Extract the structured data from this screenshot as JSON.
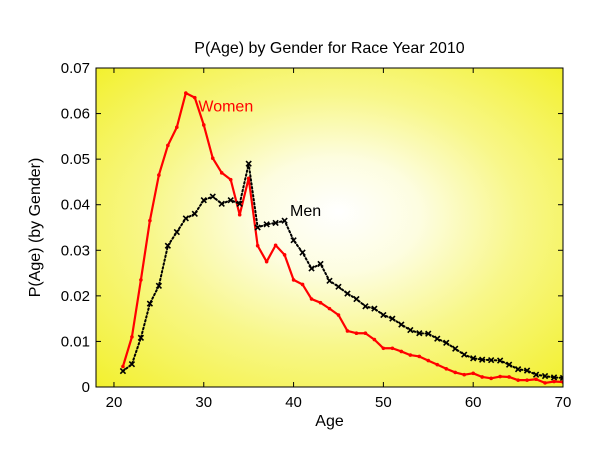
{
  "chart_data": {
    "type": "line",
    "title": "P(Age) by Gender for Race Year 2010",
    "xlabel": "Age",
    "ylabel": "P(Age) (by Gender)",
    "xlim": [
      18,
      70
    ],
    "ylim": [
      0,
      0.07
    ],
    "xticks": [
      20,
      30,
      40,
      50,
      60,
      70
    ],
    "yticks": [
      0,
      0.01,
      0.02,
      0.03,
      0.04,
      0.05,
      0.06,
      0.07
    ],
    "ytick_labels": [
      "0",
      "0.01",
      "0.02",
      "0.03",
      "0.04",
      "0.05",
      "0.06",
      "0.07"
    ],
    "grid": false,
    "background": {
      "center": "#ffffff",
      "edge": "#f2f02a"
    },
    "series": [
      {
        "name": "Women",
        "color": "#ff0000",
        "style": "solid",
        "marker": "dot",
        "x": [
          21,
          22,
          23,
          24,
          25,
          26,
          27,
          28,
          29,
          30,
          31,
          32,
          33,
          34,
          35,
          36,
          37,
          38,
          39,
          40,
          41,
          42,
          43,
          44,
          45,
          46,
          47,
          48,
          49,
          50,
          51,
          52,
          53,
          54,
          55,
          56,
          57,
          58,
          59,
          60,
          61,
          62,
          63,
          64,
          65,
          66,
          67,
          68,
          69,
          70
        ],
        "y": [
          0.0045,
          0.011,
          0.0235,
          0.0365,
          0.0465,
          0.053,
          0.057,
          0.0645,
          0.0635,
          0.0575,
          0.0502,
          0.047,
          0.0455,
          0.0378,
          0.0458,
          0.031,
          0.0275,
          0.0311,
          0.029,
          0.0235,
          0.0225,
          0.0193,
          0.0185,
          0.0172,
          0.0158,
          0.0123,
          0.0118,
          0.0118,
          0.0104,
          0.0085,
          0.0085,
          0.0078,
          0.007,
          0.0067,
          0.0058,
          0.0049,
          0.004,
          0.0032,
          0.0027,
          0.003,
          0.0022,
          0.0019,
          0.0023,
          0.0022,
          0.0015,
          0.0015,
          0.0017,
          0.0009,
          0.0012,
          0.0011
        ]
      },
      {
        "name": "Men",
        "color": "#000000",
        "style": "dotted",
        "marker": "x",
        "x": [
          21,
          22,
          23,
          24,
          25,
          26,
          27,
          28,
          29,
          30,
          31,
          32,
          33,
          34,
          35,
          36,
          37,
          38,
          39,
          40,
          41,
          42,
          43,
          44,
          45,
          46,
          47,
          48,
          49,
          50,
          51,
          52,
          53,
          54,
          55,
          56,
          57,
          58,
          59,
          60,
          61,
          62,
          63,
          64,
          65,
          66,
          67,
          68,
          69,
          70
        ],
        "y": [
          0.0035,
          0.005,
          0.0108,
          0.0183,
          0.0222,
          0.031,
          0.034,
          0.037,
          0.038,
          0.041,
          0.0418,
          0.0402,
          0.041,
          0.0402,
          0.049,
          0.035,
          0.0357,
          0.036,
          0.0365,
          0.0322,
          0.0295,
          0.026,
          0.027,
          0.0233,
          0.022,
          0.0205,
          0.0193,
          0.0177,
          0.0172,
          0.0158,
          0.015,
          0.0137,
          0.0125,
          0.0118,
          0.0117,
          0.0106,
          0.0097,
          0.0084,
          0.0071,
          0.0063,
          0.006,
          0.0059,
          0.0058,
          0.0049,
          0.0039,
          0.0036,
          0.0027,
          0.0024,
          0.0021,
          0.002
        ]
      }
    ],
    "annotations": [
      {
        "text": "Women",
        "x": 29.4,
        "y": 0.0604,
        "color": "#ff0000"
      },
      {
        "text": "Men",
        "x": 39.6,
        "y": 0.0375,
        "color": "#000000"
      }
    ]
  }
}
